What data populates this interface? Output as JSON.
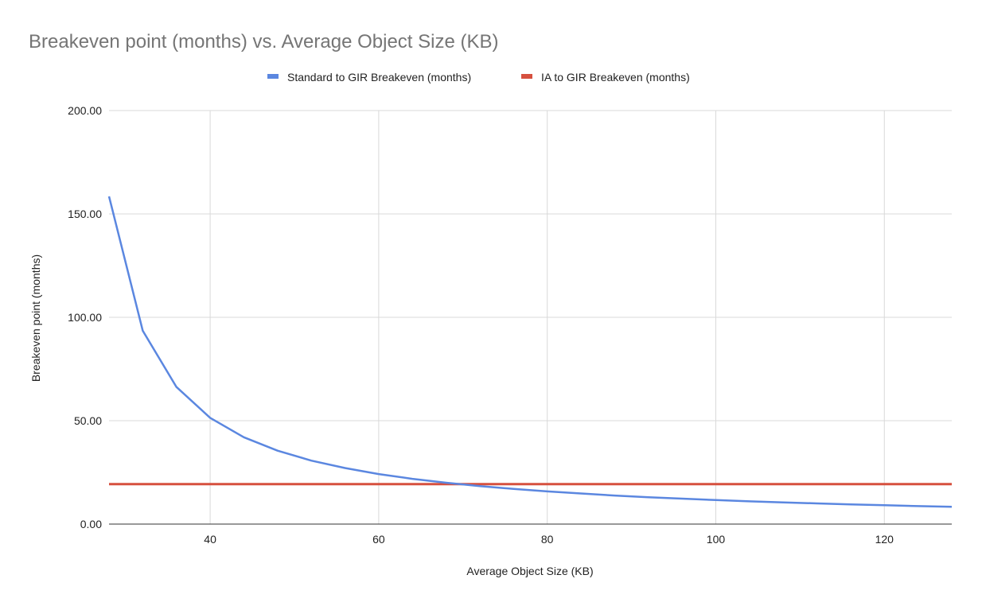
{
  "chart_data": {
    "type": "line",
    "title": "Breakeven point (months) vs. Average Object Size (KB)",
    "xlabel": "Average Object Size (KB)",
    "ylabel": "Breakeven point (months)",
    "xlim": [
      28,
      128
    ],
    "ylim": [
      0,
      200
    ],
    "x_ticks": [
      "40",
      "60",
      "80",
      "100",
      "120"
    ],
    "y_ticks": [
      "0.00",
      "50.00",
      "100.00",
      "150.00",
      "200.00"
    ],
    "grid": true,
    "legend_position": "top",
    "series": [
      {
        "name": "Standard to GIR Breakeven (months)",
        "color": "#5b87e0",
        "x": [
          28,
          32,
          36,
          40,
          44,
          48,
          52,
          56,
          60,
          64,
          68,
          72,
          76,
          80,
          84,
          88,
          92,
          96,
          100,
          104,
          108,
          112,
          116,
          120,
          124,
          128
        ],
        "y": [
          158.5,
          93.5,
          66.3,
          51.4,
          42.0,
          35.5,
          30.7,
          27.1,
          24.2,
          21.9,
          20.0,
          18.4,
          17.0,
          15.8,
          14.8,
          13.8,
          13.0,
          12.3,
          11.6,
          11.0,
          10.5,
          10.0,
          9.5,
          9.1,
          8.7,
          8.4
        ]
      },
      {
        "name": "IA to GIR Breakeven (months)",
        "color": "#d6503f",
        "x": [
          28,
          128
        ],
        "y": [
          19.3,
          19.3
        ]
      }
    ]
  }
}
